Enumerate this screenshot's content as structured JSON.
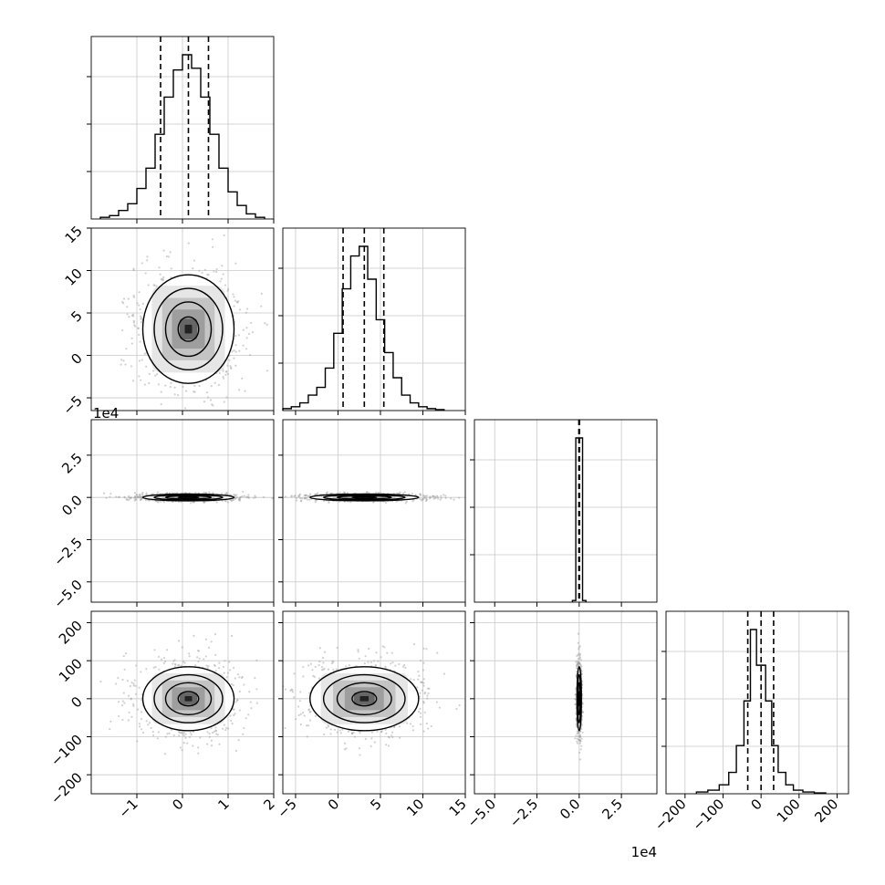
{
  "chart_data": {
    "type": "corner",
    "variables": 4,
    "grid": true,
    "quantile_lines": "dashed black, 16/50/84 percent",
    "contour_levels": 4,
    "colors": {
      "lines": "#000000",
      "grid": "#c8c8c8",
      "points": "#9a9a9a",
      "density": "#555555"
    },
    "axes": [
      {
        "index": 0,
        "range": [
          -2.0,
          2.0
        ],
        "ticks": [
          -1,
          0,
          1,
          2
        ],
        "tick_labels": [
          "−1",
          "0",
          "1",
          "2"
        ],
        "offset_label": ""
      },
      {
        "index": 1,
        "range": [
          -6.5,
          15
        ],
        "ticks": [
          -5,
          0,
          5,
          10,
          15
        ],
        "tick_labels": [
          "−5",
          "0",
          "5",
          "10",
          "15"
        ],
        "offset_label": ""
      },
      {
        "index": 2,
        "range": [
          -6.2,
          4.6
        ],
        "ticks": [
          -5.0,
          -2.5,
          0.0,
          2.5
        ],
        "tick_labels": [
          "−5.0",
          "−2.5",
          "0.0",
          "2.5"
        ],
        "offset_label": "1e4"
      },
      {
        "index": 3,
        "range": [
          -250,
          230
        ],
        "ticks": [
          -200,
          -100,
          0,
          100,
          200
        ],
        "tick_labels": [
          "−200",
          "−100",
          "0",
          "100",
          "200"
        ],
        "offset_label": ""
      }
    ],
    "marginals": [
      {
        "index": 0,
        "quantiles": [
          -0.48,
          0.13,
          0.57
        ],
        "bins": [
          -1.8,
          -1.6,
          -1.4,
          -1.2,
          -1.0,
          -0.8,
          -0.6,
          -0.4,
          -0.2,
          0.0,
          0.2,
          0.4,
          0.6,
          0.8,
          1.0,
          1.2,
          1.4,
          1.6,
          1.8
        ],
        "values": [
          0.01,
          0.02,
          0.05,
          0.09,
          0.18,
          0.3,
          0.5,
          0.72,
          0.88,
          0.97,
          0.89,
          0.72,
          0.5,
          0.3,
          0.16,
          0.08,
          0.03,
          0.01
        ]
      },
      {
        "index": 1,
        "quantiles": [
          0.6,
          3.1,
          5.4
        ],
        "bins": [
          -6.5,
          -5.5,
          -4.5,
          -3.5,
          -2.5,
          -1.5,
          -0.5,
          0.5,
          1.5,
          2.5,
          3.5,
          4.5,
          5.5,
          6.5,
          7.5,
          8.5,
          9.5,
          10.5,
          11.5,
          12.5
        ],
        "values": [
          0.01,
          0.02,
          0.04,
          0.08,
          0.12,
          0.22,
          0.4,
          0.63,
          0.8,
          0.85,
          0.68,
          0.47,
          0.3,
          0.17,
          0.08,
          0.04,
          0.02,
          0.01,
          0.005
        ]
      },
      {
        "index": 2,
        "quantiles": [
          -0.02,
          0.0,
          0.02
        ],
        "bins": [
          -0.4,
          -0.2,
          0.2,
          0.4
        ],
        "values": [
          0.01,
          1.0,
          0.01
        ]
      },
      {
        "index": 3,
        "quantiles": [
          -35,
          0,
          33
        ],
        "bins": [
          -170,
          -140,
          -110,
          -85,
          -65,
          -45,
          -28,
          -12,
          12,
          28,
          45,
          65,
          85,
          110,
          140,
          170
        ],
        "values": [
          0.01,
          0.02,
          0.05,
          0.12,
          0.27,
          0.52,
          0.92,
          0.72,
          0.52,
          0.27,
          0.12,
          0.05,
          0.02,
          0.01,
          0.005
        ]
      }
    ],
    "joint": [
      {
        "x": 0,
        "y": 1,
        "cx": 0.13,
        "cy": 3.1,
        "sx": 0.5,
        "sy": 3.2
      },
      {
        "x": 0,
        "y": 2,
        "cx": 0.13,
        "cy": 0.0,
        "sx": 0.5,
        "sy": 0.1
      },
      {
        "x": 1,
        "y": 2,
        "cx": 3.1,
        "cy": 0.0,
        "sx": 3.2,
        "sy": 0.1
      },
      {
        "x": 0,
        "y": 3,
        "cx": 0.13,
        "cy": 0,
        "sx": 0.5,
        "sy": 42
      },
      {
        "x": 1,
        "y": 3,
        "cx": 3.1,
        "cy": 0,
        "sx": 3.2,
        "sy": 42
      },
      {
        "x": 2,
        "y": 3,
        "cx": 0.0,
        "cy": 0,
        "sx": 0.015,
        "sy": 42
      }
    ]
  }
}
